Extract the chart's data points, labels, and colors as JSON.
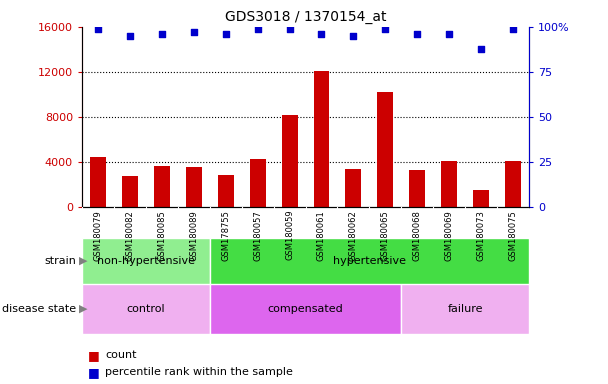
{
  "title": "GDS3018 / 1370154_at",
  "samples": [
    "GSM180079",
    "GSM180082",
    "GSM180085",
    "GSM180089",
    "GSM178755",
    "GSM180057",
    "GSM180059",
    "GSM180061",
    "GSM180062",
    "GSM180065",
    "GSM180068",
    "GSM180069",
    "GSM180073",
    "GSM180075"
  ],
  "counts": [
    4500,
    2800,
    3700,
    3600,
    2900,
    4300,
    8200,
    12100,
    3400,
    10200,
    3300,
    4100,
    1500,
    4100
  ],
  "percentiles": [
    99,
    95,
    96,
    97,
    96,
    99,
    99,
    96,
    95,
    99,
    96,
    96,
    88,
    99
  ],
  "bar_color": "#cc0000",
  "dot_color": "#0000cc",
  "ylim_left": [
    0,
    16000
  ],
  "ylim_right": [
    0,
    100
  ],
  "yticks_left": [
    0,
    4000,
    8000,
    12000,
    16000
  ],
  "yticks_right": [
    0,
    25,
    50,
    75,
    100
  ],
  "ytick_labels_left": [
    "0",
    "4000",
    "8000",
    "12000",
    "16000"
  ],
  "ytick_labels_right": [
    "0",
    "25",
    "50",
    "75",
    "100%"
  ],
  "strain_groups": [
    {
      "label": "non-hypertensive",
      "start": 0,
      "end": 4,
      "color": "#90ee90"
    },
    {
      "label": "hypertensive",
      "start": 4,
      "end": 14,
      "color": "#44dd44"
    }
  ],
  "disease_groups": [
    {
      "label": "control",
      "start": 0,
      "end": 4,
      "color": "#f0b0f0"
    },
    {
      "label": "compensated",
      "start": 4,
      "end": 10,
      "color": "#dd66ee"
    },
    {
      "label": "failure",
      "start": 10,
      "end": 14,
      "color": "#f0b0f0"
    }
  ],
  "legend_items": [
    {
      "label": "count",
      "color": "#cc0000"
    },
    {
      "label": "percentile rank within the sample",
      "color": "#0000cc"
    }
  ],
  "title_color": "#000000",
  "left_axis_color": "#cc0000",
  "right_axis_color": "#0000cc",
  "sample_bg_color": "#c8c8c8",
  "row_label_strain": "strain",
  "row_label_disease": "disease state"
}
